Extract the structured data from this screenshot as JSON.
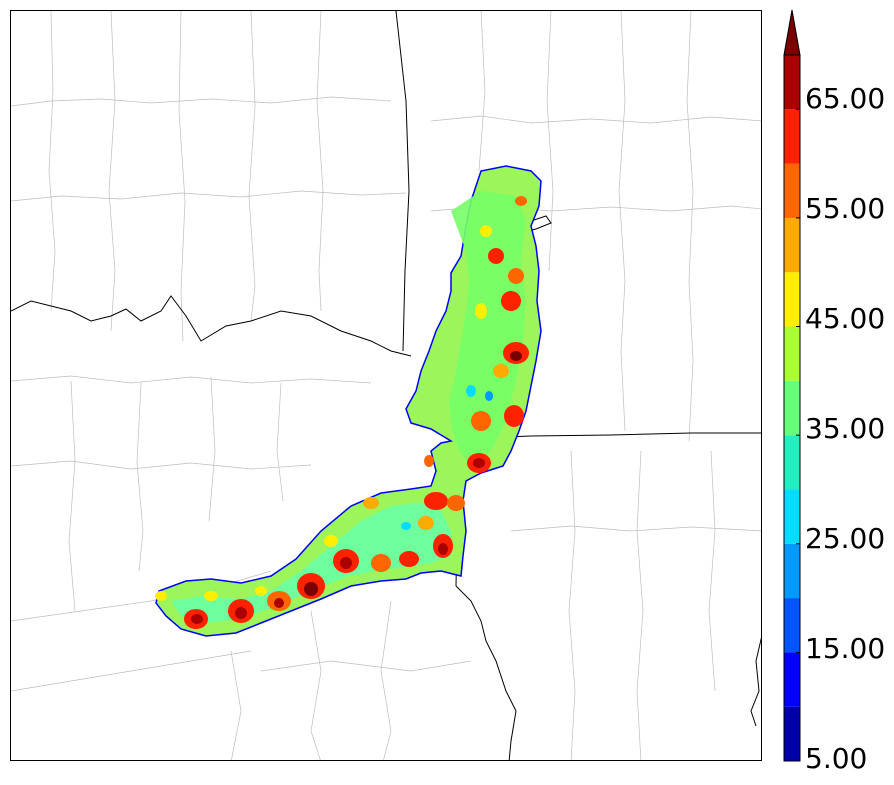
{
  "map": {
    "layers": [
      "county-boundaries",
      "state-boundaries",
      "rivers",
      "precip-swath"
    ]
  },
  "colorbar": {
    "extend": "max",
    "colors": [
      "#0000aa",
      "#0000ff",
      "#0055ff",
      "#0099ff",
      "#00ddff",
      "#22f0c0",
      "#66ff77",
      "#aaff33",
      "#ffee00",
      "#ffaa00",
      "#ff6600",
      "#ff2200",
      "#aa0000",
      "#7a0000"
    ],
    "tick_labels": [
      "5.00",
      "15.00",
      "25.00",
      "35.00",
      "45.00",
      "55.00",
      "65.00"
    ]
  }
}
